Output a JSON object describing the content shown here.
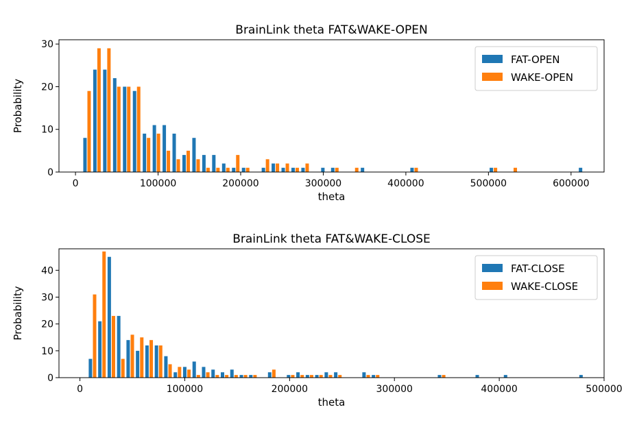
{
  "colors": {
    "fat": "#1f77b4",
    "wake": "#ff7f0e"
  },
  "chart_data": [
    {
      "type": "bar",
      "title": "BrainLink theta FAT&WAKE-OPEN",
      "xlabel": "theta",
      "ylabel": "Probability",
      "xlim": [
        -20000,
        640000
      ],
      "ylim": [
        0,
        31
      ],
      "xticks": [
        0,
        100000,
        200000,
        300000,
        400000,
        500000,
        600000
      ],
      "yticks": [
        0,
        10,
        20,
        30
      ],
      "grid": false,
      "legend": "top-right",
      "series": [
        {
          "name": "FAT-OPEN",
          "color": "#1f77b4",
          "x": [
            11500,
            23500,
            35500,
            47500,
            59500,
            71500,
            83500,
            95500,
            107500,
            119500,
            131500,
            143500,
            155500,
            167500,
            179500,
            191500,
            203500,
            227500,
            239500,
            251500,
            263500,
            275500,
            299500,
            311500,
            347500,
            407500,
            503500,
            611500
          ],
          "values": [
            8,
            24,
            24,
            22,
            20,
            19,
            9,
            11,
            11,
            9,
            4,
            8,
            4,
            4,
            2,
            1,
            1,
            1,
            2,
            1,
            1,
            1,
            1,
            1,
            1,
            1,
            1,
            1
          ]
        },
        {
          "name": "WAKE-OPEN",
          "color": "#ff7f0e",
          "x": [
            16500,
            28500,
            40500,
            52500,
            64500,
            76500,
            88500,
            100500,
            112500,
            124500,
            136500,
            148500,
            160500,
            172500,
            184500,
            196500,
            208500,
            232500,
            244500,
            256500,
            268500,
            280500,
            316500,
            340500,
            412500,
            508500,
            532500
          ],
          "values": [
            19,
            29,
            29,
            20,
            20,
            20,
            8,
            9,
            5,
            3,
            5,
            3,
            1,
            1,
            1,
            4,
            1,
            3,
            2,
            2,
            1,
            2,
            1,
            1,
            1,
            1,
            1
          ]
        }
      ]
    },
    {
      "type": "bar",
      "title": "BrainLink theta FAT&WAKE-CLOSE",
      "xlabel": "theta",
      "ylabel": "Probability",
      "xlim": [
        -20000,
        500000
      ],
      "ylim": [
        0,
        48
      ],
      "xticks": [
        0,
        100000,
        200000,
        300000,
        400000,
        500000
      ],
      "yticks": [
        0,
        10,
        20,
        30,
        40
      ],
      "grid": false,
      "legend": "top-right",
      "series": [
        {
          "name": "FAT-CLOSE",
          "color": "#1f77b4",
          "x": [
            10000,
            19000,
            28000,
            37000,
            46000,
            55000,
            64000,
            73000,
            82000,
            91000,
            100000,
            109000,
            118000,
            127000,
            136000,
            145000,
            154000,
            163000,
            181000,
            199000,
            208000,
            217000,
            226000,
            235000,
            244000,
            271000,
            280000,
            343000,
            379000,
            406000,
            478000
          ],
          "values": [
            7,
            21,
            45,
            23,
            14,
            10,
            12,
            12,
            8,
            2,
            4,
            6,
            4,
            3,
            2,
            3,
            1,
            1,
            2,
            1,
            2,
            1,
            1,
            2,
            2,
            2,
            1,
            1,
            1,
            1,
            1
          ]
        },
        {
          "name": "WAKE-CLOSE",
          "color": "#ff7f0e",
          "x": [
            14000,
            23000,
            32000,
            41000,
            50000,
            59000,
            68000,
            77000,
            86000,
            95000,
            104000,
            113000,
            122000,
            131000,
            140000,
            149000,
            158000,
            167000,
            185000,
            203000,
            212000,
            221000,
            230000,
            239000,
            248000,
            275000,
            284000,
            347000
          ],
          "values": [
            31,
            47,
            23,
            7,
            16,
            15,
            14,
            12,
            5,
            4,
            3,
            1,
            2,
            1,
            1,
            1,
            1,
            1,
            3,
            1,
            1,
            1,
            1,
            1,
            1,
            1,
            1,
            1
          ]
        }
      ]
    }
  ]
}
